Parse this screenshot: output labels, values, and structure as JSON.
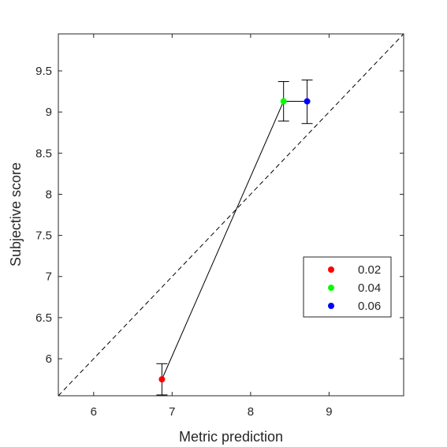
{
  "chart_data": {
    "type": "scatter",
    "title": "",
    "xlabel": "Metric prediction",
    "ylabel": "Subjective score",
    "xlim": [
      5.55,
      9.95
    ],
    "ylim": [
      5.55,
      9.95
    ],
    "xticks": [
      6,
      7,
      8,
      9
    ],
    "yticks": [
      6,
      6.5,
      7,
      7.5,
      8,
      8.5,
      9,
      9.5
    ],
    "x_tick_labels": [
      "6",
      "7",
      "8",
      "9"
    ],
    "y_tick_labels": [
      "6",
      "6.5",
      "7",
      "7.5",
      "8",
      "8.5",
      "9",
      "9.5"
    ],
    "grid": false,
    "box": true,
    "legend_position": "lower-right",
    "reference_line": {
      "style": "dashed",
      "slope": 1,
      "intercept": 0
    },
    "connect_points": true,
    "series": [
      {
        "name": "0.02",
        "x": 6.87,
        "y": 5.75,
        "err_low": 0.19,
        "err_high": 0.19,
        "color": "#ff0000"
      },
      {
        "name": "0.04",
        "x": 8.42,
        "y": 9.13,
        "err_low": 0.24,
        "err_high": 0.24,
        "color": "#00ff00"
      },
      {
        "name": "0.06",
        "x": 8.72,
        "y": 9.13,
        "err_low": 0.27,
        "err_high": 0.26,
        "color": "#0000ff"
      }
    ]
  }
}
